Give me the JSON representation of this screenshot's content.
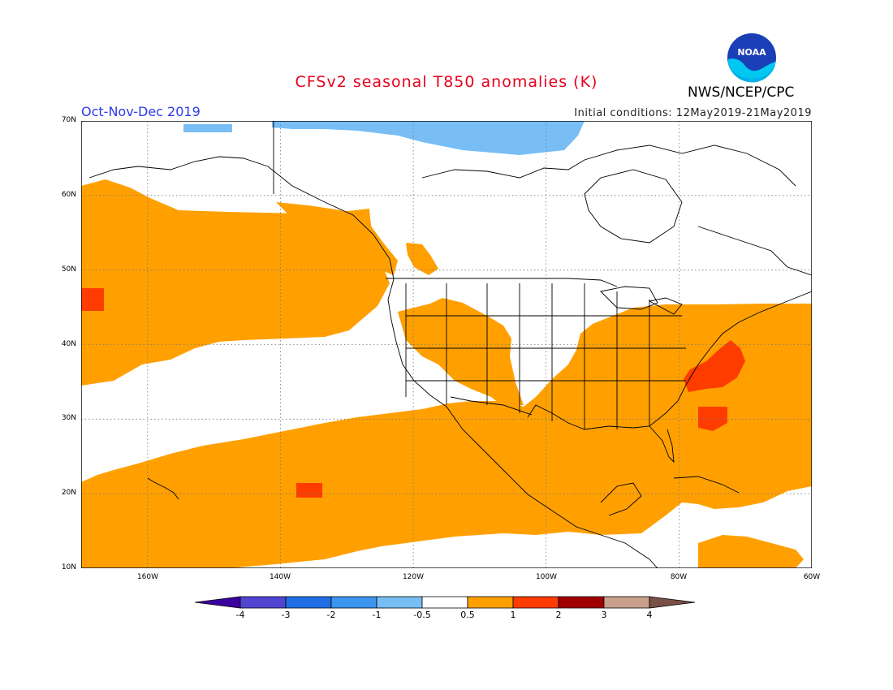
{
  "header": {
    "title": "CFSv2 seasonal T850 anomalies (K)",
    "season": "Oct-Nov-Dec 2019",
    "initial_conditions": "Initial conditions: 12May2019-21May2019",
    "agency": "NWS/NCEP/CPC",
    "logo_text": "NOAA",
    "logo_icon": "noaa-logo-icon"
  },
  "map": {
    "lat_range": [
      10,
      70
    ],
    "lon_range": [
      -170,
      -60
    ],
    "lat_labels": [
      "70N",
      "60N",
      "50N",
      "40N",
      "30N",
      "20N",
      "10N"
    ],
    "lon_labels": [
      "160W",
      "140W",
      "120W",
      "100W",
      "80W",
      "60W"
    ]
  },
  "colorbar": {
    "labels": [
      "-4",
      "-3",
      "-2",
      "-1",
      "-0.5",
      "0.5",
      "1",
      "2",
      "3",
      "4"
    ],
    "colors": [
      "#3c00a0",
      "#5046d2",
      "#1f6ee6",
      "#3c96f0",
      "#78bef5",
      "#ffffff",
      "#ffa000",
      "#ff3c00",
      "#a00000",
      "#c8a08c",
      "#785046"
    ]
  }
}
